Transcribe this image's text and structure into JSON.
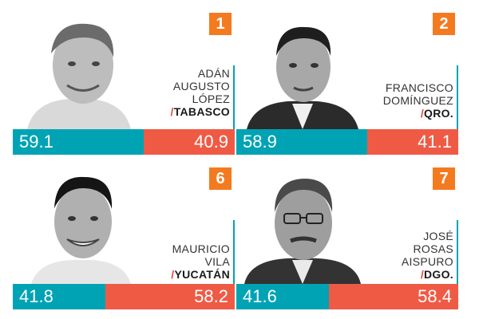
{
  "cards": [
    {
      "rank": "1",
      "name_lines": [
        "ADÁN",
        "AUGUSTO",
        "LÓPEZ"
      ],
      "state": "TABASCO",
      "left": "59.1",
      "right": "40.9",
      "left_pct": 59.1
    },
    {
      "rank": "2",
      "name_lines": [
        "FRANCISCO",
        "DOMÍNGUEZ"
      ],
      "state": "QRO.",
      "left": "58.9",
      "right": "41.1",
      "left_pct": 58.9
    },
    {
      "rank": "6",
      "name_lines": [
        "MAURICIO",
        "VILA"
      ],
      "state": "YUCATÁN",
      "left": "41.8",
      "right": "58.2",
      "left_pct": 41.8
    },
    {
      "rank": "7",
      "name_lines": [
        "JOSÉ",
        "ROSAS",
        "AISPURO"
      ],
      "state": "DGO.",
      "left": "41.6",
      "right": "58.4",
      "left_pct": 41.6
    }
  ],
  "colors": {
    "teal": "#00a3b4",
    "red": "#ef5a45",
    "orange": "#f47a20"
  }
}
